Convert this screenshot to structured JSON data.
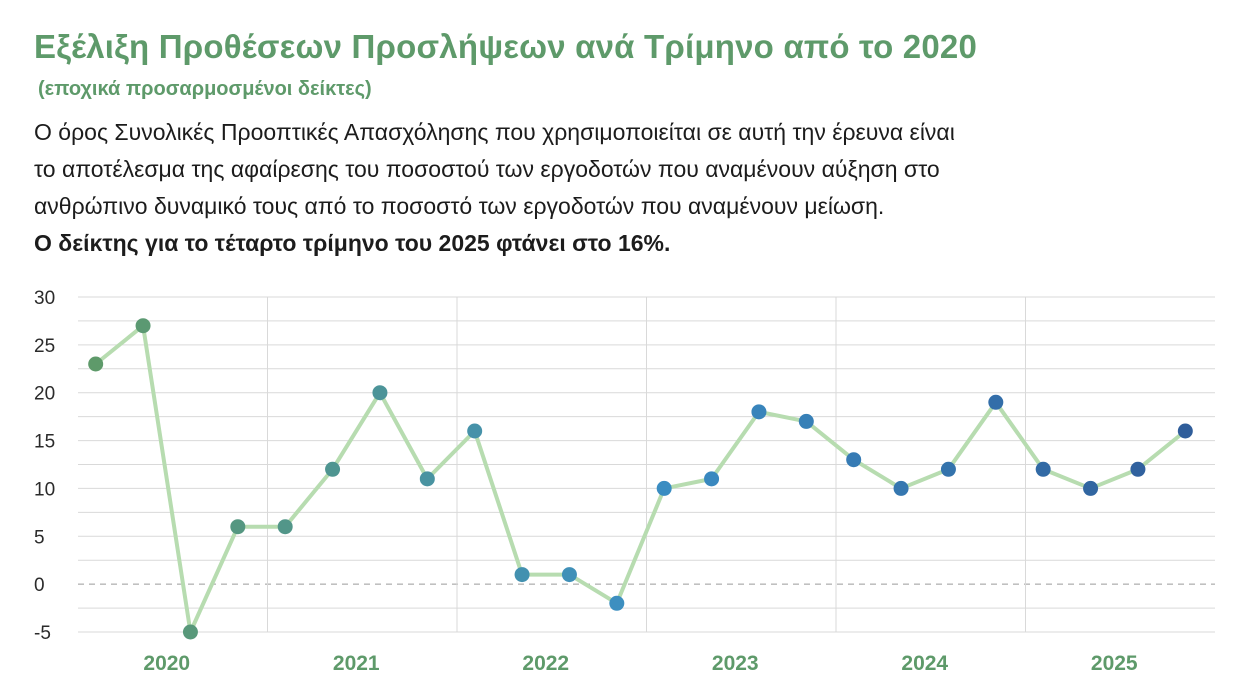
{
  "header": {
    "title": "Εξέλιξη Προθέσεων Προσλήψεων ανά Τρίμηνο από το 2020",
    "subtitle": "(εποχικά προσαρμοσμένοι δείκτες)",
    "description_lines": [
      "Ο όρος Συνολικές Προοπτικές Απασχόλησης που χρησιμοποιείται σε αυτή την έρευνα είναι",
      "το αποτέλεσμα της αφαίρεσης του ποσοστού των εργοδοτών που αναμένουν αύξηση στο",
      "ανθρώπινο δυναμικό τους από το ποσοστό των εργοδοτών που αναμένουν μείωση."
    ],
    "highlight": "Ο δείκτης για το τέταρτο τρίμηνο του 2025 φτάνει στο 16%."
  },
  "chart_data": {
    "type": "line",
    "title": "Εξέλιξη Προθέσεων Προσλήψεων ανά Τρίμηνο από το 2020",
    "subtitle": "(εποχικά προσαρμοσμένοι δείκτες)",
    "xlabel": "",
    "ylabel": "",
    "years": [
      "2020",
      "2021",
      "2022",
      "2023",
      "2024",
      "2025"
    ],
    "quarters_per_year": 4,
    "yticks": [
      30,
      25,
      20,
      15,
      10,
      5,
      0,
      -5
    ],
    "ylim": [
      -5,
      30
    ],
    "grid": true,
    "legend": "none",
    "zero_line": "dashed",
    "series": [
      {
        "values": [
          23,
          27,
          -5,
          6,
          6,
          12,
          20,
          11,
          16,
          1,
          1,
          -2,
          10,
          11,
          18,
          17,
          13,
          10,
          12,
          19,
          12,
          10,
          12,
          16
        ]
      }
    ],
    "colors": {
      "line": "#b7dcb0",
      "point_start": "#5e9a6a",
      "point_mid": "#3b8fc4",
      "point_end": "#2f5d9a",
      "grid": "#d9d9d9",
      "zero_line": "#9a9a9a"
    }
  }
}
